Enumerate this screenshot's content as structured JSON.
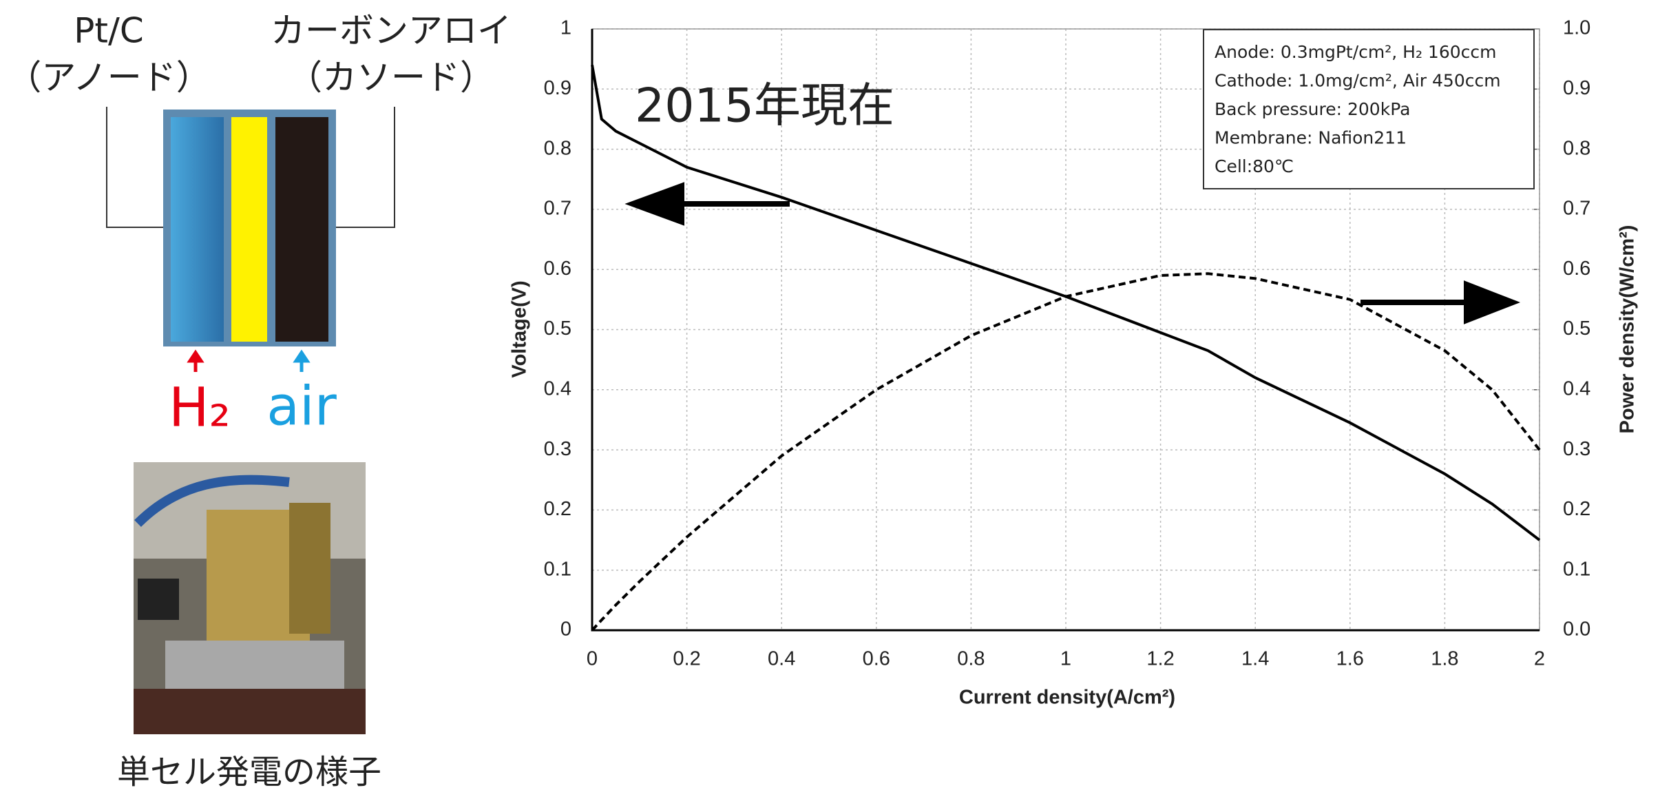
{
  "diagram": {
    "anode_label": "Pt/C",
    "anode_sub": "（アノード）",
    "cathode_label": "カーボンアロイ",
    "cathode_sub": "（カソード）",
    "h2_label": "H₂",
    "air_label": "air",
    "photo_caption": "単セル発電の様子"
  },
  "chart_data": {
    "type": "line",
    "annotation": "2015年現在",
    "conditions": [
      "Anode: 0.3mgPt/cm², H₂ 160ccm",
      "Cathode: 1.0mg/cm², Air 450ccm",
      "Back pressure: 200kPa",
      "Membrane: Nafion211",
      "Cell:80℃"
    ],
    "x_label": "Current density(A/cm²)",
    "y_label": "Voltage(V)",
    "y2_label": "Power density(W/cm²)",
    "x": [
      0,
      0.02,
      0.05,
      0.1,
      0.2,
      0.4,
      0.6,
      0.8,
      1.0,
      1.2,
      1.3,
      1.4,
      1.6,
      1.8,
      1.9,
      2.0
    ],
    "series": [
      {
        "color": "#000000",
        "dash": "solid",
        "values": [
          0.94,
          0.85,
          0.83,
          0.81,
          0.77,
          0.72,
          0.665,
          0.61,
          0.555,
          0.495,
          0.465,
          0.42,
          0.345,
          0.26,
          0.21,
          0.15
        ]
      },
      {
        "color": "#000000",
        "dash": "dashed",
        "axis": "y2",
        "values": [
          0,
          0.017,
          0.042,
          0.081,
          0.155,
          0.29,
          0.4,
          0.49,
          0.555,
          0.59,
          0.593,
          0.585,
          0.55,
          0.465,
          0.4,
          0.3
        ]
      }
    ],
    "xlim": [
      0,
      2
    ],
    "xticks": [
      0,
      0.2,
      0.4,
      0.6,
      0.8,
      1,
      1.2,
      1.4,
      1.6,
      1.8,
      2
    ],
    "ylim": [
      0,
      1
    ],
    "yticks": [
      0,
      0.1,
      0.2,
      0.3,
      0.4,
      0.5,
      0.6,
      0.7,
      0.8,
      0.9,
      1
    ],
    "y2lim": [
      0,
      1
    ],
    "y2ticks": [
      {
        "value": 0,
        "label": "0.0"
      },
      0.1,
      0.2,
      0.3,
      0.4,
      0.5,
      0.6,
      0.7,
      0.8,
      0.9,
      {
        "value": 1,
        "label": "1.0"
      }
    ],
    "grid": true
  }
}
